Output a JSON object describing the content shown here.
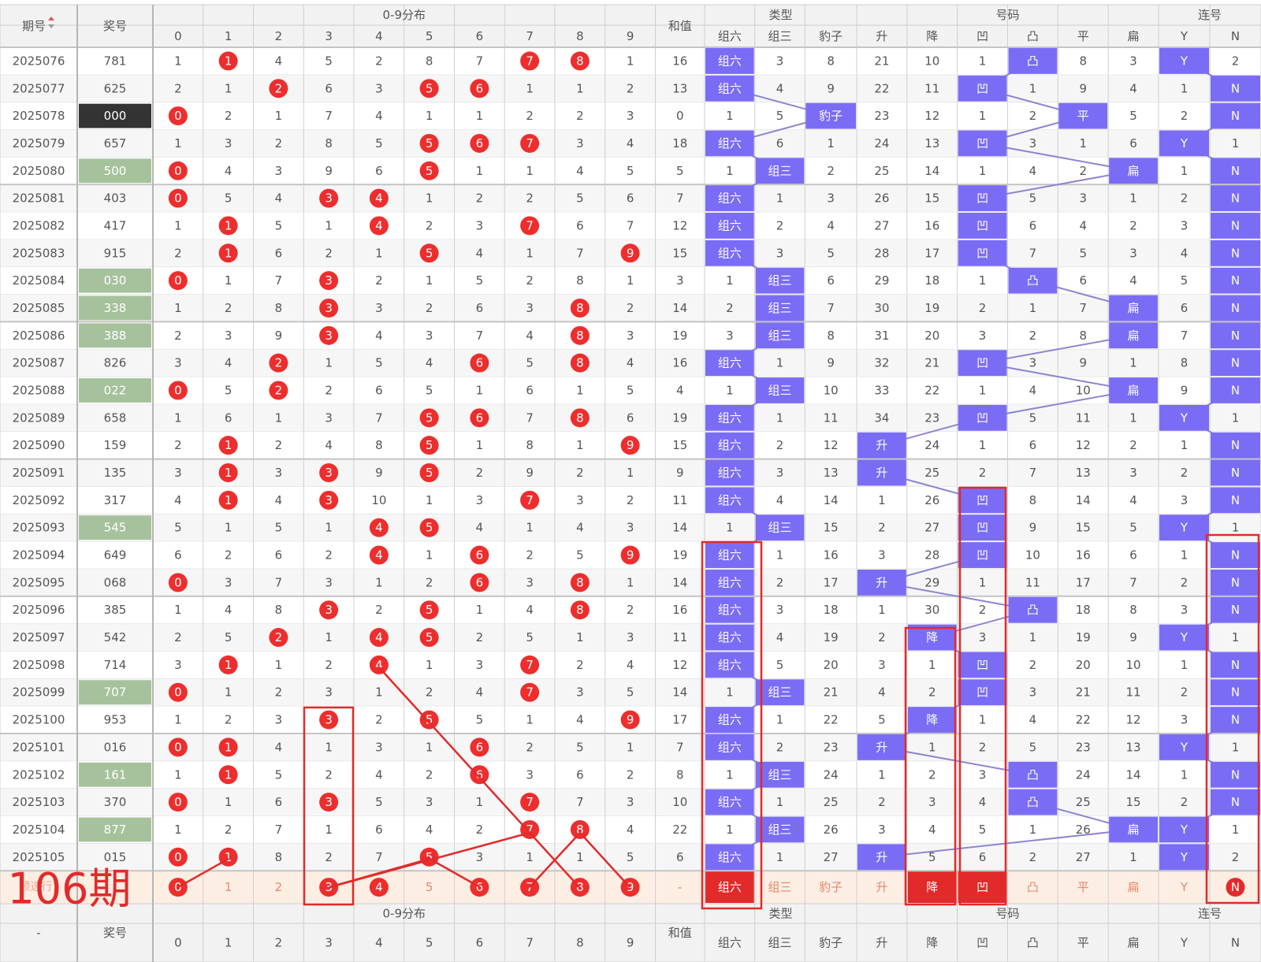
{
  "header": {
    "issue": "期号",
    "prize": "奖号",
    "dist": "0-9分布",
    "digits": [
      "0",
      "1",
      "2",
      "3",
      "4",
      "5",
      "6",
      "7",
      "8",
      "9"
    ],
    "sum": "和值",
    "type_group": "类型",
    "type_cols": [
      "组六",
      "组三",
      "豹子"
    ],
    "num_group": "号码",
    "num_cols": [
      "升",
      "降",
      "凹",
      "凸",
      "平",
      "扁"
    ],
    "link_group": "连号",
    "link_cols": [
      "Y",
      "N"
    ]
  },
  "rows": [
    {
      "issue": "2025076",
      "prize": "781",
      "prize_style": "normal",
      "dist": [
        1,
        "H",
        4,
        5,
        2,
        8,
        7,
        "H",
        "H",
        1
      ],
      "sum": "16",
      "type": [
        "H",
        3,
        8
      ],
      "num": [
        21,
        10,
        1,
        "H",
        8,
        3
      ],
      "link": [
        "H",
        2
      ]
    },
    {
      "issue": "2025077",
      "prize": "625",
      "prize_style": "normal",
      "dist": [
        2,
        1,
        "H",
        6,
        3,
        "H",
        "H",
        1,
        1,
        2
      ],
      "sum": "13",
      "type": [
        "H",
        4,
        9
      ],
      "num": [
        22,
        11,
        "H",
        1,
        9,
        4
      ],
      "link": [
        1,
        "H"
      ]
    },
    {
      "issue": "2025078",
      "prize": "000",
      "prize_style": "triple",
      "dist": [
        "H",
        2,
        1,
        7,
        4,
        1,
        1,
        2,
        2,
        3
      ],
      "sum": "0",
      "type": [
        1,
        5,
        "H"
      ],
      "num": [
        23,
        12,
        1,
        2,
        "H",
        5
      ],
      "link": [
        2,
        "H"
      ]
    },
    {
      "issue": "2025079",
      "prize": "657",
      "prize_style": "normal",
      "dist": [
        1,
        3,
        2,
        8,
        5,
        "H",
        "H",
        "H",
        3,
        4
      ],
      "sum": "18",
      "type": [
        "H",
        6,
        1
      ],
      "num": [
        24,
        13,
        "H",
        3,
        1,
        6
      ],
      "link": [
        "H",
        1
      ]
    },
    {
      "issue": "2025080",
      "prize": "500",
      "prize_style": "pair",
      "dist": [
        "H",
        4,
        3,
        9,
        6,
        "H",
        1,
        1,
        4,
        5
      ],
      "sum": "5",
      "type": [
        1,
        "H",
        2
      ],
      "num": [
        25,
        14,
        1,
        4,
        2,
        "H"
      ],
      "link": [
        1,
        "H"
      ]
    },
    {
      "issue": "2025081",
      "prize": "403",
      "prize_style": "normal",
      "dist": [
        "H",
        5,
        4,
        "H",
        "H",
        1,
        2,
        2,
        5,
        6
      ],
      "sum": "7",
      "type": [
        "H",
        1,
        3
      ],
      "num": [
        26,
        15,
        "H",
        5,
        3,
        1
      ],
      "link": [
        2,
        "H"
      ]
    },
    {
      "issue": "2025082",
      "prize": "417",
      "prize_style": "normal",
      "dist": [
        1,
        "H",
        5,
        1,
        "H",
        2,
        3,
        "H",
        6,
        7
      ],
      "sum": "12",
      "type": [
        "H",
        2,
        4
      ],
      "num": [
        27,
        16,
        "H",
        6,
        4,
        2
      ],
      "link": [
        3,
        "H"
      ]
    },
    {
      "issue": "2025083",
      "prize": "915",
      "prize_style": "normal",
      "dist": [
        2,
        "H",
        6,
        2,
        1,
        "H",
        4,
        1,
        7,
        "H"
      ],
      "sum": "15",
      "type": [
        "H",
        3,
        5
      ],
      "num": [
        28,
        17,
        "H",
        7,
        5,
        3
      ],
      "link": [
        4,
        "H"
      ]
    },
    {
      "issue": "2025084",
      "prize": "030",
      "prize_style": "pair",
      "dist": [
        "H",
        1,
        7,
        "H",
        2,
        1,
        5,
        2,
        8,
        1
      ],
      "sum": "3",
      "type": [
        1,
        "H",
        6
      ],
      "num": [
        29,
        18,
        1,
        "H",
        6,
        4
      ],
      "link": [
        5,
        "H"
      ]
    },
    {
      "issue": "2025085",
      "prize": "338",
      "prize_style": "pair",
      "dist": [
        1,
        2,
        8,
        "H",
        3,
        2,
        6,
        3,
        "H",
        2
      ],
      "sum": "14",
      "type": [
        2,
        "H",
        7
      ],
      "num": [
        30,
        19,
        2,
        1,
        7,
        "H"
      ],
      "link": [
        6,
        "H"
      ]
    },
    {
      "issue": "2025086",
      "prize": "388",
      "prize_style": "pair",
      "dist": [
        2,
        3,
        9,
        "H",
        4,
        3,
        7,
        4,
        "H",
        3
      ],
      "sum": "19",
      "type": [
        3,
        "H",
        8
      ],
      "num": [
        31,
        20,
        3,
        2,
        8,
        "H"
      ],
      "link": [
        7,
        "H"
      ]
    },
    {
      "issue": "2025087",
      "prize": "826",
      "prize_style": "normal",
      "dist": [
        3,
        4,
        "H",
        1,
        5,
        4,
        "H",
        5,
        "H",
        4
      ],
      "sum": "16",
      "type": [
        "H",
        1,
        9
      ],
      "num": [
        32,
        21,
        "H",
        3,
        9,
        1
      ],
      "link": [
        8,
        "H"
      ]
    },
    {
      "issue": "2025088",
      "prize": "022",
      "prize_style": "pair",
      "dist": [
        "H",
        5,
        "H",
        2,
        6,
        5,
        1,
        6,
        1,
        5
      ],
      "sum": "4",
      "type": [
        1,
        "H",
        10
      ],
      "num": [
        33,
        22,
        1,
        4,
        10,
        "H"
      ],
      "link": [
        9,
        "H"
      ]
    },
    {
      "issue": "2025089",
      "prize": "658",
      "prize_style": "normal",
      "dist": [
        1,
        6,
        1,
        3,
        7,
        "H",
        "H",
        7,
        "H",
        6
      ],
      "sum": "19",
      "type": [
        "H",
        1,
        11
      ],
      "num": [
        34,
        23,
        "H",
        5,
        11,
        1
      ],
      "link": [
        "H",
        1
      ]
    },
    {
      "issue": "2025090",
      "prize": "159",
      "prize_style": "normal",
      "dist": [
        2,
        "H",
        2,
        4,
        8,
        "H",
        1,
        8,
        1,
        "H"
      ],
      "sum": "15",
      "type": [
        "H",
        2,
        12
      ],
      "num": [
        "H",
        24,
        1,
        6,
        12,
        2
      ],
      "link": [
        1,
        "H"
      ]
    },
    {
      "issue": "2025091",
      "prize": "135",
      "prize_style": "normal",
      "dist": [
        3,
        "H",
        3,
        "H",
        9,
        "H",
        2,
        9,
        2,
        1
      ],
      "sum": "9",
      "type": [
        "H",
        3,
        13
      ],
      "num": [
        "H",
        25,
        2,
        7,
        13,
        3
      ],
      "link": [
        2,
        "H"
      ]
    },
    {
      "issue": "2025092",
      "prize": "317",
      "prize_style": "normal",
      "dist": [
        4,
        "H",
        4,
        "H",
        10,
        1,
        3,
        "H",
        3,
        2
      ],
      "sum": "11",
      "type": [
        "H",
        4,
        14
      ],
      "num": [
        1,
        26,
        "H",
        8,
        14,
        4
      ],
      "link": [
        3,
        "H"
      ]
    },
    {
      "issue": "2025093",
      "prize": "545",
      "prize_style": "pair",
      "dist": [
        5,
        1,
        5,
        1,
        "H",
        "H",
        4,
        1,
        4,
        3
      ],
      "sum": "14",
      "type": [
        1,
        "H",
        15
      ],
      "num": [
        2,
        27,
        "H",
        9,
        15,
        5
      ],
      "link": [
        "H",
        1
      ]
    },
    {
      "issue": "2025094",
      "prize": "649",
      "prize_style": "normal",
      "dist": [
        6,
        2,
        6,
        2,
        "H",
        1,
        "H",
        2,
        5,
        "H"
      ],
      "sum": "19",
      "type": [
        "H",
        1,
        16
      ],
      "num": [
        3,
        28,
        "H",
        10,
        16,
        6
      ],
      "link": [
        1,
        "H"
      ]
    },
    {
      "issue": "2025095",
      "prize": "068",
      "prize_style": "normal",
      "dist": [
        "H",
        3,
        7,
        3,
        1,
        2,
        "H",
        3,
        "H",
        1
      ],
      "sum": "14",
      "type": [
        "H",
        2,
        17
      ],
      "num": [
        "H",
        29,
        1,
        11,
        17,
        7
      ],
      "link": [
        2,
        "H"
      ]
    },
    {
      "issue": "2025096",
      "prize": "385",
      "prize_style": "normal",
      "dist": [
        1,
        4,
        8,
        "H",
        2,
        "H",
        1,
        4,
        "H",
        2
      ],
      "sum": "16",
      "type": [
        "H",
        3,
        18
      ],
      "num": [
        1,
        30,
        2,
        "H",
        18,
        8
      ],
      "link": [
        3,
        "H"
      ]
    },
    {
      "issue": "2025097",
      "prize": "542",
      "prize_style": "normal",
      "dist": [
        2,
        5,
        "H",
        1,
        "H",
        "H",
        2,
        5,
        1,
        3
      ],
      "sum": "11",
      "type": [
        "H",
        4,
        19
      ],
      "num": [
        2,
        "H",
        3,
        1,
        19,
        9
      ],
      "link": [
        "H",
        1
      ]
    },
    {
      "issue": "2025098",
      "prize": "714",
      "prize_style": "normal",
      "dist": [
        3,
        "H",
        1,
        2,
        "H",
        1,
        3,
        "H",
        2,
        4
      ],
      "sum": "12",
      "type": [
        "H",
        5,
        20
      ],
      "num": [
        3,
        1,
        "H",
        2,
        20,
        10
      ],
      "link": [
        1,
        "H"
      ]
    },
    {
      "issue": "2025099",
      "prize": "707",
      "prize_style": "pair",
      "dist": [
        "H",
        1,
        2,
        3,
        1,
        2,
        4,
        "H",
        3,
        5
      ],
      "sum": "14",
      "type": [
        1,
        "H",
        21
      ],
      "num": [
        4,
        2,
        "H",
        3,
        21,
        11
      ],
      "link": [
        2,
        "H"
      ]
    },
    {
      "issue": "2025100",
      "prize": "953",
      "prize_style": "normal",
      "dist": [
        1,
        2,
        3,
        "H",
        2,
        "H",
        5,
        1,
        4,
        "H"
      ],
      "sum": "17",
      "type": [
        "H",
        1,
        22
      ],
      "num": [
        5,
        "H",
        1,
        4,
        22,
        12
      ],
      "link": [
        3,
        "H"
      ]
    },
    {
      "issue": "2025101",
      "prize": "016",
      "prize_style": "normal",
      "dist": [
        "H",
        "H",
        4,
        1,
        3,
        1,
        "H",
        2,
        5,
        1
      ],
      "sum": "7",
      "type": [
        "H",
        2,
        23
      ],
      "num": [
        "H",
        1,
        2,
        5,
        23,
        13
      ],
      "link": [
        "H",
        1
      ]
    },
    {
      "issue": "2025102",
      "prize": "161",
      "prize_style": "pair",
      "dist": [
        1,
        "H",
        5,
        2,
        4,
        2,
        "H",
        3,
        6,
        2
      ],
      "sum": "8",
      "type": [
        1,
        "H",
        24
      ],
      "num": [
        1,
        2,
        3,
        "H",
        24,
        14
      ],
      "link": [
        1,
        "H"
      ]
    },
    {
      "issue": "2025103",
      "prize": "370",
      "prize_style": "normal",
      "dist": [
        "H",
        1,
        6,
        "H",
        5,
        3,
        1,
        "H",
        7,
        3
      ],
      "sum": "10",
      "type": [
        "H",
        1,
        25
      ],
      "num": [
        2,
        3,
        4,
        "H",
        25,
        15
      ],
      "link": [
        2,
        "H"
      ]
    },
    {
      "issue": "2025104",
      "prize": "877",
      "prize_style": "pair",
      "dist": [
        1,
        2,
        7,
        1,
        6,
        4,
        2,
        "H",
        "H",
        4
      ],
      "sum": "22",
      "type": [
        1,
        "H",
        26
      ],
      "num": [
        3,
        4,
        5,
        1,
        26,
        "H"
      ],
      "link": [
        "H",
        1
      ]
    },
    {
      "issue": "2025105",
      "prize": "015",
      "prize_style": "normal",
      "dist": [
        "H",
        "H",
        8,
        2,
        7,
        "H",
        3,
        1,
        1,
        5
      ],
      "sum": "6",
      "type": [
        "H",
        1,
        27
      ],
      "num": [
        "H",
        5,
        6,
        2,
        27,
        1
      ],
      "link": [
        "H",
        2
      ]
    }
  ],
  "predict": {
    "big_label": "106期",
    "row_label": "预选行1",
    "prize": "",
    "sum": "-",
    "dist_marked": [
      0,
      3,
      4,
      6,
      7,
      8,
      9
    ],
    "type_marked": [
      0
    ],
    "num_marked": [
      1,
      2
    ],
    "link_marked": [
      1
    ]
  },
  "footer": {
    "issue": "-",
    "prize": "奖号"
  },
  "colors": {
    "ball_red": "#ee2d2d",
    "hit_purple": "#7b6cf6",
    "triple_bg": "#333333",
    "pair_bg": "#a5c29d",
    "link_line": "#8c86cf",
    "forecast_red": "#e22a2a",
    "predict_bg": "#fdeee4",
    "predict_text": "#e8876a",
    "grid": "#cfcfcf",
    "header_bg": "#f2f2f2"
  }
}
